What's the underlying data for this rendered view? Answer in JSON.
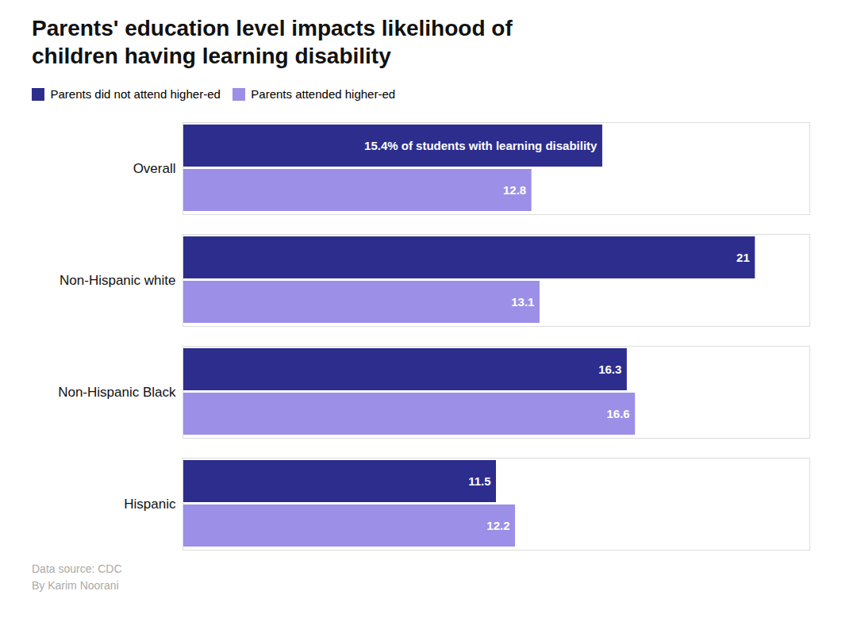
{
  "chart_data": {
    "type": "bar",
    "orientation": "horizontal",
    "title": "Parents' education level impacts likelihood of\nchildren having learning disability",
    "categories": [
      "Overall",
      "Non-Hispanic white",
      "Non-Hispanic Black",
      "Hispanic"
    ],
    "series": [
      {
        "name": "Parents did not attend higher-ed",
        "color": "#2d2d8e",
        "values": [
          15.4,
          21.0,
          16.3,
          11.5
        ],
        "value_labels": [
          "15.4% of students with learning disability",
          "21",
          "16.3",
          "11.5"
        ]
      },
      {
        "name": "Parents attended higher-ed",
        "color": "#9b8fe8",
        "values": [
          12.8,
          13.1,
          16.6,
          12.2
        ],
        "value_labels": [
          "12.8",
          "13.1",
          "16.6",
          "12.2"
        ]
      }
    ],
    "xlim": [
      0,
      23
    ],
    "tick_labels": false,
    "grid": false,
    "legend": "upper left",
    "data_labels": true,
    "annotations": [
      "Data source: CDC\nBy Karim Noorani"
    ]
  }
}
